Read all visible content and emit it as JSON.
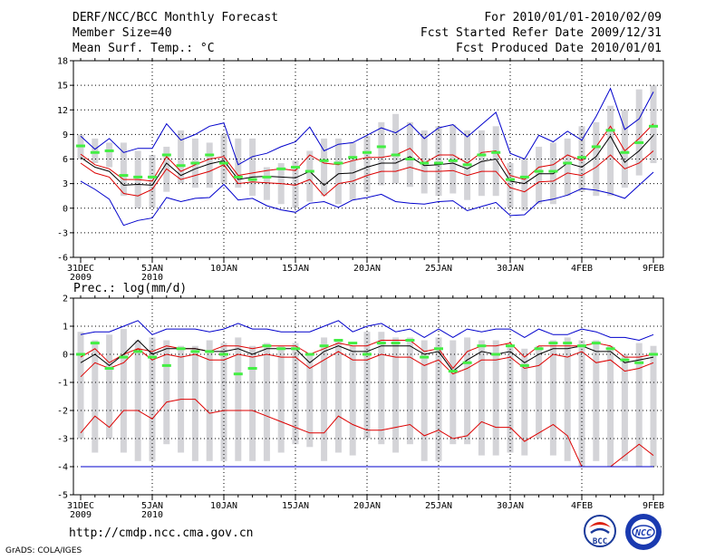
{
  "header": {
    "title": "DERF/NCC/BCC Monthly Forecast",
    "member": "Member Size=40",
    "variable": "Mean Surf. Temp.: °C",
    "period": "For 2010/01/01-2010/02/09",
    "refer": "Fcst Started Refer Date 2009/12/31",
    "produced": "Fcst Produced Date 2010/01/01"
  },
  "footer": {
    "url": "http://cmdp.ncc.cma.gov.cn",
    "credit": "GrADS: COLA/IGES",
    "logo1_text": "BCC",
    "logo2_text": "NCC"
  },
  "colors": {
    "max": "#0000cc",
    "pct": "#dd0000",
    "mean": "#000000",
    "obs": "#44ee44",
    "box": "#d4d4d8"
  },
  "chart_data": [
    {
      "type": "line",
      "title": "Mean Surf. Temp.: °C",
      "ylim": [
        -6,
        18
      ],
      "yticks": [
        "-6",
        "-3",
        "0",
        "3",
        "6",
        "9",
        "12",
        "15",
        "18"
      ],
      "xticks": [
        {
          "i": 0,
          "l1": "31DEC",
          "l2": "2009"
        },
        {
          "i": 5,
          "l1": "5JAN",
          "l2": "2010"
        },
        {
          "i": 10,
          "l1": "10JAN",
          "l2": ""
        },
        {
          "i": 15,
          "l1": "15JAN",
          "l2": ""
        },
        {
          "i": 20,
          "l1": "20JAN",
          "l2": ""
        },
        {
          "i": 25,
          "l1": "25JAN",
          "l2": ""
        },
        {
          "i": 30,
          "l1": "30JAN",
          "l2": ""
        },
        {
          "i": 35,
          "l1": "4FEB",
          "l2": ""
        },
        {
          "i": 40,
          "l1": "9FEB",
          "l2": ""
        }
      ],
      "days": 41,
      "box_low": [
        6,
        5.5,
        5,
        1.5,
        0,
        0,
        2,
        3,
        2.5,
        2.5,
        3,
        2.5,
        1.5,
        1,
        0.5,
        0,
        0.8,
        1.5,
        0.5,
        1,
        2,
        2.8,
        3,
        2.6,
        1.8,
        1.5,
        1.8,
        1,
        1.5,
        1.5,
        0,
        -0.3,
        0.5,
        0.5,
        1.5,
        2,
        1.5,
        1.5,
        2.5,
        4,
        5.5
      ],
      "box_high": [
        9,
        8.5,
        8,
        8,
        7,
        6.5,
        7.5,
        9.5,
        8.5,
        8,
        9,
        8.5,
        8.5,
        5,
        5.5,
        5.8,
        7,
        8.5,
        8.5,
        8,
        8.8,
        10.5,
        11.5,
        10.5,
        9.5,
        10,
        10.2,
        9.5,
        9.5,
        10,
        5.5,
        6,
        7.5,
        8,
        8.5,
        10,
        10.5,
        12.5,
        12,
        14.5,
        15
      ],
      "series": [
        {
          "name": "max",
          "color": "#0000cc",
          "values": [
            8.8,
            7.2,
            8.5,
            6.8,
            7.3,
            7.3,
            10.3,
            8.3,
            9,
            10,
            10.4,
            5.3,
            6.3,
            6.7,
            7.5,
            8.1,
            9.9,
            7,
            7.8,
            8,
            8.9,
            9.8,
            9.2,
            10.3,
            8.5,
            9.8,
            10.2,
            8.7,
            10.2,
            11.7,
            6.7,
            6,
            8.9,
            8.1,
            9.4,
            8.3,
            11.2,
            14.6,
            9.6,
            10.9,
            14.2
          ]
        },
        {
          "name": "p75",
          "color": "#dd0000",
          "values": [
            6.6,
            5.3,
            4.8,
            3.5,
            3.5,
            3.3,
            6.3,
            4.5,
            5.3,
            6,
            6.3,
            4,
            4.3,
            4.6,
            4.8,
            4.6,
            6.5,
            5.5,
            5.3,
            5.8,
            6.2,
            6.2,
            6.5,
            7.3,
            5.5,
            6.5,
            6.5,
            5.5,
            6.8,
            7,
            4,
            3.5,
            5,
            5.3,
            6.5,
            5.8,
            7.5,
            10,
            7,
            8.5,
            10.3
          ]
        },
        {
          "name": "mean",
          "color": "#000000",
          "values": [
            6.2,
            5,
            4.5,
            2.8,
            2.9,
            2.8,
            5.5,
            4,
            4.8,
            5.4,
            5.8,
            3.5,
            3.8,
            3.9,
            3.8,
            3.7,
            4.5,
            2.8,
            4.2,
            4.3,
            5,
            5.5,
            5.5,
            6.3,
            5.2,
            5.3,
            5.5,
            4.8,
            5.7,
            6,
            3.3,
            3,
            4.2,
            4.2,
            5.5,
            5,
            6.3,
            8.8,
            5.6,
            7,
            8.9
          ]
        },
        {
          "name": "p25",
          "color": "#dd0000",
          "values": [
            5.5,
            4.3,
            3.8,
            1.8,
            1.5,
            2.3,
            4.8,
            3.5,
            4,
            4.5,
            5.3,
            3,
            3.2,
            3.1,
            3,
            2.8,
            3.5,
            1.5,
            3,
            3.3,
            4,
            4.5,
            4.5,
            5,
            4.5,
            4.5,
            4.6,
            4,
            4.5,
            4.5,
            2.5,
            2,
            3.2,
            3.3,
            4.3,
            4,
            5,
            6.5,
            4.8,
            5.5,
            7
          ]
        },
        {
          "name": "min",
          "color": "#0000cc",
          "values": [
            3.3,
            2.3,
            1.1,
            -2.1,
            -1.5,
            -1.2,
            1.3,
            0.8,
            1.2,
            1.3,
            2.9,
            1,
            1.2,
            0.3,
            -0.2,
            -0.5,
            0.6,
            0.8,
            0.1,
            1,
            1.3,
            1.7,
            0.8,
            0.6,
            0.5,
            0.8,
            0.9,
            -0.3,
            0.2,
            0.7,
            -0.9,
            -0.8,
            0.8,
            1.1,
            1.6,
            2.4,
            2.2,
            1.8,
            1.2,
            2.8,
            4.4
          ]
        }
      ],
      "obs": [
        7.6,
        6.8,
        7,
        4,
        3.8,
        3.8,
        6.5,
        5.2,
        5.5,
        6.5,
        5.5,
        3.8,
        3.5,
        3.8,
        4.8,
        5,
        4.5,
        5.8,
        5.5,
        6.2,
        6.8,
        7.5,
        6.5,
        6,
        5.5,
        5.5,
        5.8,
        5.3,
        6.5,
        6.8,
        3.5,
        3.8,
        4.5,
        4.5,
        5.5,
        6.2,
        7.5,
        9.5,
        6.8,
        8,
        10
      ]
    },
    {
      "type": "line",
      "title": "Prec.: log(mm/d)",
      "ylim": [
        -5,
        2
      ],
      "yticks": [
        "-5",
        "-4",
        "-3",
        "-2",
        "-1",
        "0",
        "1",
        "2"
      ],
      "xticks": [
        {
          "i": 0,
          "l1": "31DEC",
          "l2": "2009"
        },
        {
          "i": 5,
          "l1": "5JAN",
          "l2": "2010"
        },
        {
          "i": 10,
          "l1": "10JAN",
          "l2": ""
        },
        {
          "i": 15,
          "l1": "15JAN",
          "l2": ""
        },
        {
          "i": 20,
          "l1": "20JAN",
          "l2": ""
        },
        {
          "i": 25,
          "l1": "25JAN",
          "l2": ""
        },
        {
          "i": 30,
          "l1": "30JAN",
          "l2": ""
        },
        {
          "i": 35,
          "l1": "4FEB",
          "l2": ""
        },
        {
          "i": 40,
          "l1": "9FEB",
          "l2": ""
        }
      ],
      "days": 41,
      "box_low": [
        -3,
        -3.5,
        -3,
        -3.5,
        -3.8,
        -3.8,
        -3.2,
        -3.5,
        -3.8,
        -3.8,
        -3.8,
        -3.8,
        -3.8,
        -3.8,
        -3.5,
        -3.2,
        -3.3,
        -3.8,
        -3.5,
        -3.6,
        -3,
        -3.2,
        -3.5,
        -3.2,
        -3.8,
        -3.8,
        -3.2,
        -3.2,
        -3.6,
        -3.6,
        -3.5,
        -3.6,
        -3,
        -3.6,
        -3.8,
        -4,
        -3.8,
        -4,
        -3.8,
        -4,
        -4
      ],
      "box_high": [
        0.8,
        0.5,
        0.7,
        0.9,
        0.5,
        0.6,
        0.5,
        0.3,
        0.3,
        0.5,
        0.4,
        0.6,
        0.3,
        0.4,
        0.3,
        0.4,
        0,
        0.6,
        0.5,
        0.3,
        0.8,
        0.8,
        0.6,
        0.6,
        0.5,
        0.6,
        0.5,
        0.6,
        0.5,
        0.5,
        0.3,
        0.2,
        0.3,
        0.5,
        0.6,
        0.5,
        0.5,
        0.3,
        0,
        0.4,
        0.3
      ],
      "series": [
        {
          "name": "max",
          "color": "#0000cc",
          "values": [
            0.7,
            0.8,
            0.8,
            1,
            1.2,
            0.7,
            0.9,
            0.9,
            0.9,
            0.8,
            0.9,
            1.1,
            0.9,
            0.9,
            0.8,
            0.8,
            0.8,
            1,
            1.2,
            0.8,
            1,
            1.1,
            0.8,
            0.9,
            0.6,
            0.9,
            0.6,
            0.9,
            0.8,
            0.9,
            0.9,
            0.6,
            0.9,
            0.7,
            0.7,
            0.9,
            0.8,
            0.6,
            0.6,
            0.5,
            0.7
          ]
        },
        {
          "name": "p75",
          "color": "#dd0000",
          "values": [
            -0.1,
            0.2,
            -0.3,
            0,
            0.2,
            0.1,
            0.3,
            0.2,
            0.2,
            0.1,
            0.3,
            0.3,
            0.2,
            0.3,
            0.3,
            0.3,
            0,
            0.2,
            0.4,
            0.3,
            0.3,
            0.5,
            0.5,
            0.5,
            0.1,
            0.2,
            -0.5,
            0.1,
            0.3,
            0.3,
            0.4,
            -0.1,
            0.3,
            0.3,
            0.3,
            0.3,
            0.4,
            0.3,
            -0.1,
            -0.1,
            0
          ]
        },
        {
          "name": "mean",
          "color": "#000000",
          "values": [
            -0.3,
            0,
            -0.4,
            0,
            0.5,
            0,
            0.2,
            0.2,
            0.2,
            0.1,
            0.1,
            0.2,
            0,
            0.2,
            0.2,
            0.2,
            -0.3,
            0.1,
            0.3,
            0.1,
            0.1,
            0.3,
            0.3,
            0.3,
            0,
            0.1,
            -0.6,
            -0.2,
            0.1,
            0,
            0.1,
            -0.3,
            0,
            0.2,
            0.2,
            0.3,
            0.1,
            0.1,
            -0.3,
            -0.2,
            -0.1
          ]
        },
        {
          "name": "p25",
          "color": "#dd0000",
          "values": [
            -0.8,
            -0.3,
            -0.5,
            -0.3,
            0.2,
            -0.2,
            0,
            -0.1,
            0,
            -0.2,
            -0.2,
            0,
            -0.1,
            0,
            -0.1,
            -0.1,
            -0.5,
            -0.2,
            0.1,
            -0.2,
            -0.2,
            0,
            -0.1,
            -0.1,
            -0.4,
            -0.2,
            -0.7,
            -0.5,
            -0.2,
            -0.2,
            -0.1,
            -0.5,
            -0.4,
            0,
            -0.1,
            0.1,
            -0.3,
            -0.2,
            -0.6,
            -0.5,
            -0.3
          ]
        },
        {
          "name": "p10",
          "color": "#dd0000",
          "values": [
            -2.8,
            -2.2,
            -2.6,
            -2,
            -2,
            -2.3,
            -1.7,
            -1.6,
            -1.6,
            -2.1,
            -2,
            -2,
            -2,
            -2.2,
            -2.4,
            -2.6,
            -2.8,
            -2.8,
            -2.2,
            -2.5,
            -2.7,
            -2.7,
            -2.6,
            -2.5,
            -2.9,
            -2.7,
            -3,
            -2.9,
            -2.4,
            -2.6,
            -2.6,
            -3.1,
            -2.8,
            -2.5,
            -2.9,
            -4,
            -4,
            -4,
            -3.6,
            -3.2,
            -3.6
          ]
        },
        {
          "name": "min",
          "color": "#0000cc",
          "values": [
            -4,
            -4,
            -4,
            -4,
            -4,
            -4,
            -4,
            -4,
            -4,
            -4,
            -4,
            -4,
            -4,
            -4,
            -4,
            -4,
            -4,
            -4,
            -4,
            -4,
            -4,
            -4,
            -4,
            -4,
            -4,
            -4,
            -4,
            -4,
            -4,
            -4,
            -4,
            -4,
            -4,
            -4,
            -4,
            -4,
            -4,
            -4,
            -4,
            -4,
            -4
          ]
        }
      ],
      "obs": [
        0,
        0.4,
        -0.5,
        -0.1,
        0.1,
        -0.1,
        -0.4,
        0.2,
        0.1,
        0.1,
        0,
        -0.7,
        -0.5,
        0.3,
        0.2,
        0.2,
        0,
        0.3,
        0.5,
        0.4,
        0,
        0.4,
        0.4,
        0.5,
        -0.1,
        0.2,
        -0.6,
        -0.3,
        0.3,
        0,
        0.3,
        -0.4,
        0.2,
        0.4,
        0.4,
        0.3,
        0.4,
        0.2,
        -0.2,
        -0.3,
        0
      ]
    }
  ]
}
